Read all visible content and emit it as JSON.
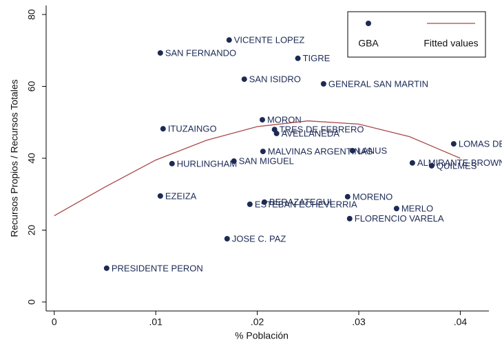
{
  "chart_data": {
    "type": "scatter",
    "x_label": "% Población",
    "y_label": "Recursos Propios / Recursos Totales",
    "xlim": [
      -0.0008,
      0.04282
    ],
    "ylim": [
      -2.5,
      82.5
    ],
    "xticks": [
      0,
      {
        "value": 0.01,
        "label": ".01"
      },
      {
        "value": 0.02,
        "label": ".02"
      },
      {
        "value": 0.03,
        "label": ".03"
      },
      {
        "value": 0.04,
        "label": ".04"
      }
    ],
    "yticks": [
      0,
      20,
      40,
      60,
      80
    ],
    "grid": false,
    "legend": "top-right",
    "series": [
      {
        "name": "GBA",
        "type": "scatter",
        "color": "#1c2a55",
        "x": [
          0.01723,
          0.01045,
          0.024,
          0.01872,
          0.02653,
          0.0205,
          0.01072,
          0.0217,
          0.0219,
          0.02056,
          0.02938,
          0.03935,
          0.03528,
          0.03718,
          0.0116,
          0.0177,
          0.01045,
          0.0207,
          0.01927,
          0.0289,
          0.03372,
          0.0291,
          0.01703,
          0.00516
        ],
        "values": [
          72.9,
          69.3,
          67.8,
          62.0,
          60.7,
          50.7,
          48.2,
          48.0,
          46.9,
          41.9,
          42.1,
          44.0,
          38.7,
          37.9,
          38.5,
          39.2,
          29.5,
          27.8,
          27.2,
          29.3,
          26.0,
          23.2,
          17.6,
          9.4
        ],
        "labels": [
          "VICENTE LOPEZ",
          "SAN FERNANDO",
          "TIGRE",
          "SAN ISIDRO",
          "GENERAL SAN MARTIN",
          "MORON",
          "ITUZAINGO",
          "TRES DE FEBRERO",
          "AVELLANEDA",
          "MALVINAS ARGENTINAS",
          "LANUS",
          "LOMAS DE ZAMORA",
          "ALMIRANTE BROWN",
          "QUILMES",
          "HURLINGHAM",
          "SAN MIGUEL",
          "EZEIZA",
          "BERAZATEGUI",
          "ESTEBAN ECHEVERRIA",
          "MORENO",
          "MERLO",
          "FLORENCIO VARELA",
          "JOSE C. PAZ",
          "PRESIDENTE PERON"
        ]
      },
      {
        "name": "Fitted values",
        "type": "line",
        "color": "#a8484a",
        "x": [
          0,
          0.005,
          0.01,
          0.015,
          0.02,
          0.025,
          0.03,
          0.035,
          0.04
        ],
        "values": [
          24,
          32,
          39.5,
          45,
          48.8,
          50.4,
          49.5,
          46,
          40
        ]
      }
    ]
  }
}
